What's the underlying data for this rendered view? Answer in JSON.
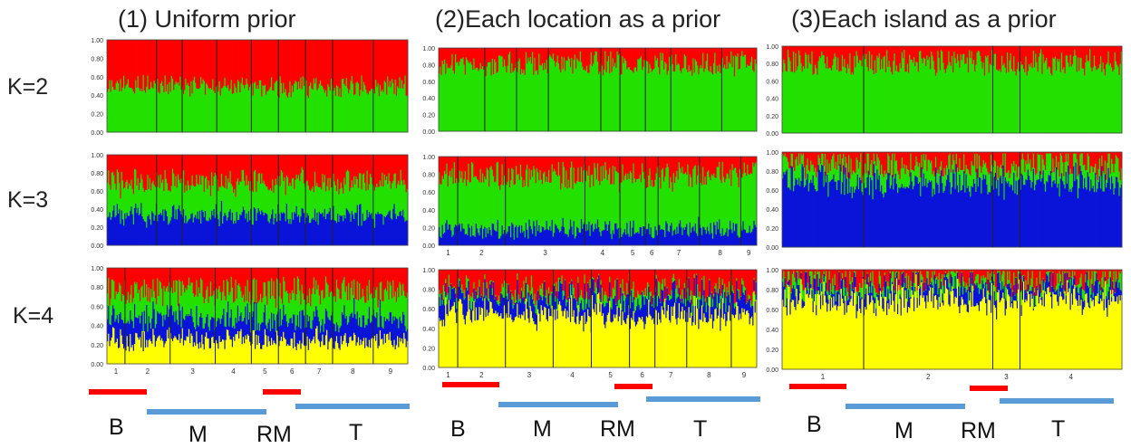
{
  "columns": [
    {
      "title": "(1) Uniform prior"
    },
    {
      "title": "(2)Each location as a prior"
    },
    {
      "title": "(3)Each island as a prior"
    }
  ],
  "rows": [
    {
      "label": "K=2"
    },
    {
      "label": "K=3"
    },
    {
      "label": "K=4"
    }
  ],
  "y_ticks": [
    "0.00",
    "0.20",
    "0.40",
    "0.60",
    "0.80",
    "1.00"
  ],
  "colors": {
    "red": "#ff0000",
    "green": "#22e000",
    "blue": "#0a14d8",
    "yellow": "#ffff00",
    "bar_red": "#ff0000",
    "bar_blue": "#5b9bd5"
  },
  "group_bars": [
    [
      {
        "label": "B",
        "color": "red"
      },
      {
        "label": "M",
        "color": "blue"
      },
      {
        "label": "RM",
        "color": "red"
      },
      {
        "label": "T",
        "color": "blue"
      }
    ],
    [
      {
        "label": "B",
        "color": "red"
      },
      {
        "label": "M",
        "color": "blue"
      },
      {
        "label": "RM",
        "color": "red"
      },
      {
        "label": "T",
        "color": "blue"
      }
    ],
    [
      {
        "label": "B",
        "color": "red"
      },
      {
        "label": "M",
        "color": "blue"
      },
      {
        "label": "RM",
        "color": "red"
      },
      {
        "label": "T",
        "color": "blue"
      }
    ]
  ],
  "chart_data": [
    {
      "type": "bar",
      "stacked": true,
      "title": "(1) Uniform prior",
      "ylabel": "K=2",
      "ylim": [
        0,
        1
      ],
      "series": [
        {
          "color": "green",
          "mean": 0.5
        },
        {
          "color": "red",
          "mean": 0.5
        }
      ],
      "pop_ticks": []
    },
    {
      "type": "bar",
      "stacked": true,
      "title": "(2)Each location as a prior",
      "ylabel": "K=2",
      "ylim": [
        0,
        1
      ],
      "series": [
        {
          "color": "green",
          "mean": 0.8
        },
        {
          "color": "red",
          "mean": 0.2
        }
      ],
      "pop_ticks": []
    },
    {
      "type": "bar",
      "stacked": true,
      "title": "(3)Each island as a prior",
      "ylabel": "K=2",
      "ylim": [
        0,
        1
      ],
      "series": [
        {
          "color": "green",
          "mean": 0.8
        },
        {
          "color": "red",
          "mean": 0.2
        }
      ],
      "pop_ticks": []
    },
    {
      "type": "bar",
      "stacked": true,
      "title": "(1) Uniform prior",
      "ylabel": "K=3",
      "ylim": [
        0,
        1
      ],
      "series": [
        {
          "color": "blue",
          "mean": 0.33
        },
        {
          "color": "green",
          "mean": 0.37
        },
        {
          "color": "red",
          "mean": 0.3
        }
      ],
      "pop_ticks": []
    },
    {
      "type": "bar",
      "stacked": true,
      "title": "(2)Each location as a prior",
      "ylabel": "K=3",
      "ylim": [
        0,
        1
      ],
      "series": [
        {
          "color": "blue",
          "mean": 0.18
        },
        {
          "color": "green",
          "mean": 0.6
        },
        {
          "color": "red",
          "mean": 0.22
        }
      ],
      "pop_ticks": [
        "1",
        "2",
        "3",
        "4",
        "5",
        "6",
        "7",
        "8",
        "9"
      ]
    },
    {
      "type": "bar",
      "stacked": true,
      "title": "(3)Each island as a prior",
      "ylabel": "K=3",
      "ylim": [
        0,
        1
      ],
      "series": [
        {
          "color": "blue",
          "mean": 0.68
        },
        {
          "color": "green",
          "mean": 0.18
        },
        {
          "color": "red",
          "mean": 0.14
        }
      ],
      "pop_ticks": []
    },
    {
      "type": "bar",
      "stacked": true,
      "title": "(1) Uniform prior",
      "ylabel": "K=4",
      "ylim": [
        0,
        1
      ],
      "series": [
        {
          "color": "yellow",
          "mean": 0.25
        },
        {
          "color": "blue",
          "mean": 0.22
        },
        {
          "color": "green",
          "mean": 0.28
        },
        {
          "color": "red",
          "mean": 0.25
        }
      ],
      "pop_ticks": [
        "1",
        "2",
        "3",
        "4",
        "5",
        "6",
        "7",
        "8",
        "9"
      ]
    },
    {
      "type": "bar",
      "stacked": true,
      "title": "(2)Each location as a prior",
      "ylabel": "K=4",
      "ylim": [
        0,
        1
      ],
      "series": [
        {
          "color": "yellow",
          "mean": 0.55
        },
        {
          "color": "blue",
          "mean": 0.18
        },
        {
          "color": "green",
          "mean": 0.07
        },
        {
          "color": "red",
          "mean": 0.2
        }
      ],
      "pop_ticks": [
        "1",
        "2",
        "3",
        "4",
        "5",
        "6",
        "7",
        "8",
        "9"
      ]
    },
    {
      "type": "bar",
      "stacked": true,
      "title": "(3)Each island as a prior",
      "ylabel": "K=4",
      "ylim": [
        0,
        1
      ],
      "series": [
        {
          "color": "yellow",
          "mean": 0.7
        },
        {
          "color": "blue",
          "mean": 0.12
        },
        {
          "color": "green",
          "mean": 0.08
        },
        {
          "color": "red",
          "mean": 0.1
        }
      ],
      "pop_ticks": [
        "1",
        "2",
        "3",
        "4"
      ]
    }
  ]
}
